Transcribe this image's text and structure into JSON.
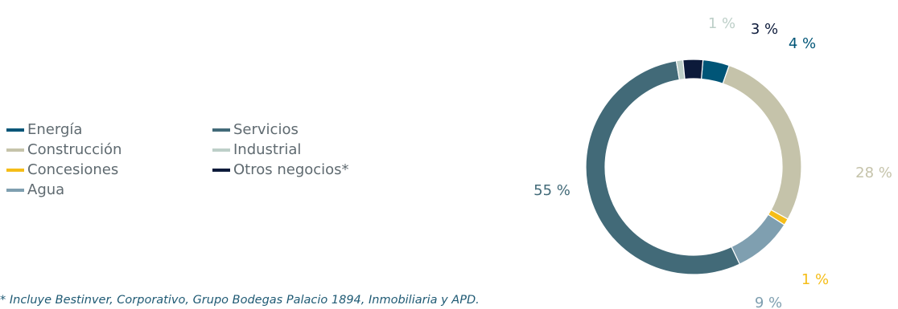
{
  "chart_data": {
    "type": "pie",
    "subtype": "donut",
    "title": "",
    "legend_position": "left",
    "series": [
      {
        "name": "Energía",
        "value": 4,
        "label": "4 %",
        "color": "#005577"
      },
      {
        "name": "Construcción",
        "value": 28,
        "label": "28 %",
        "color": "#c5c3aa"
      },
      {
        "name": "Concesiones",
        "value": 1,
        "label": "1 %",
        "color": "#f5bd18"
      },
      {
        "name": "Agua",
        "value": 9,
        "label": "9 %",
        "color": "#7f9fb0"
      },
      {
        "name": "Servicios",
        "value": 55,
        "label": "55 %",
        "color": "#426a78"
      },
      {
        "name": "Industrial",
        "value": 1,
        "label": "1 %",
        "color": "#bdcfc8"
      },
      {
        "name": "Otros negocios*",
        "value": 3,
        "label": "3 %",
        "color": "#0c1a3a"
      }
    ]
  },
  "footnote": "* Incluye Bestinver, Corporativo, Grupo Bodegas Palacio 1894, Inmobiliaria y APD."
}
